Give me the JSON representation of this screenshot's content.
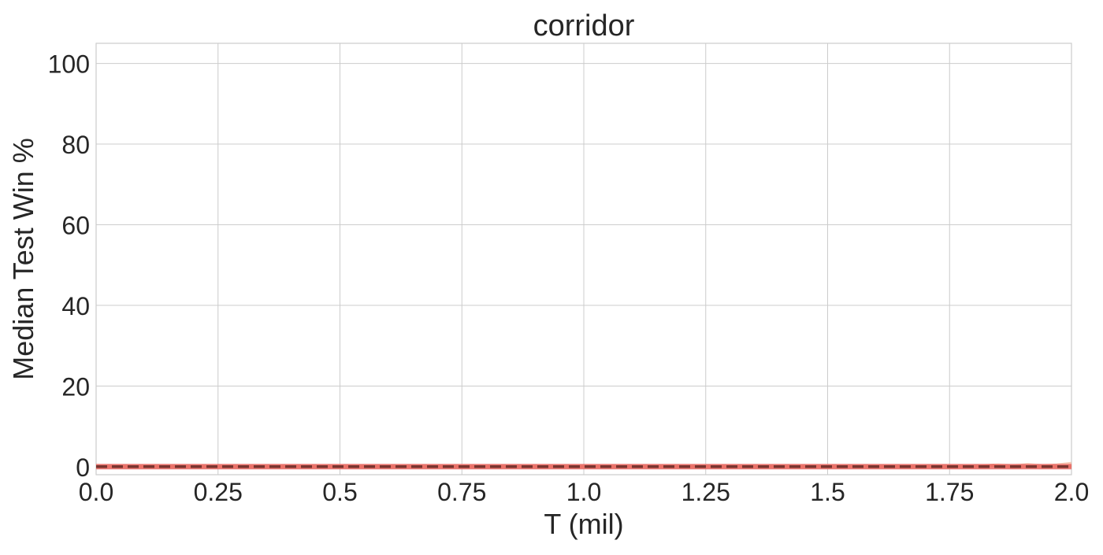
{
  "chart_data": {
    "type": "line",
    "title": "corridor",
    "xlabel": "T (mil)",
    "ylabel": "Median Test Win %",
    "xlim": [
      0.0,
      2.0
    ],
    "ylim": [
      -2,
      105
    ],
    "xticks": [
      0.0,
      0.25,
      0.5,
      0.75,
      1.0,
      1.25,
      1.5,
      1.75,
      2.0
    ],
    "xtick_labels": [
      "0.0",
      "0.25",
      "0.5",
      "0.75",
      "1.0",
      "1.25",
      "1.5",
      "1.75",
      "2.0"
    ],
    "yticks": [
      0,
      20,
      40,
      60,
      80,
      100
    ],
    "ytick_labels": [
      "0",
      "20",
      "40",
      "60",
      "80",
      "100"
    ],
    "grid": true,
    "legend": "none",
    "series": [
      {
        "color": "#f4a582",
        "style": "solid",
        "x": [
          0.0,
          0.25,
          0.5,
          0.75,
          1.0,
          1.25,
          1.5,
          1.75,
          1.82,
          1.85,
          1.88,
          1.91,
          1.94,
          1.97,
          2.0
        ],
        "y": [
          0,
          0,
          0,
          0,
          0,
          0,
          0,
          0,
          0,
          0.2,
          0,
          0.3,
          0,
          0.2,
          0.6
        ]
      },
      {
        "color": "#f46d43",
        "style": "solid",
        "x": [
          0.0,
          0.5,
          1.0,
          1.5,
          1.8,
          1.84,
          1.86,
          1.9,
          2.0
        ],
        "y": [
          0,
          0,
          0,
          0,
          0,
          0.3,
          0,
          0,
          0
        ]
      },
      {
        "color": "#e8706c",
        "style": "solid",
        "x": [
          0.0,
          0.5,
          1.0,
          1.5,
          2.0
        ],
        "y": [
          0,
          0,
          0,
          0,
          0
        ]
      },
      {
        "color": "#7a3530",
        "style": "dashed",
        "x": [
          0.0,
          0.5,
          1.0,
          1.5,
          2.0
        ],
        "y": [
          0,
          0,
          0,
          0,
          0
        ]
      }
    ]
  }
}
